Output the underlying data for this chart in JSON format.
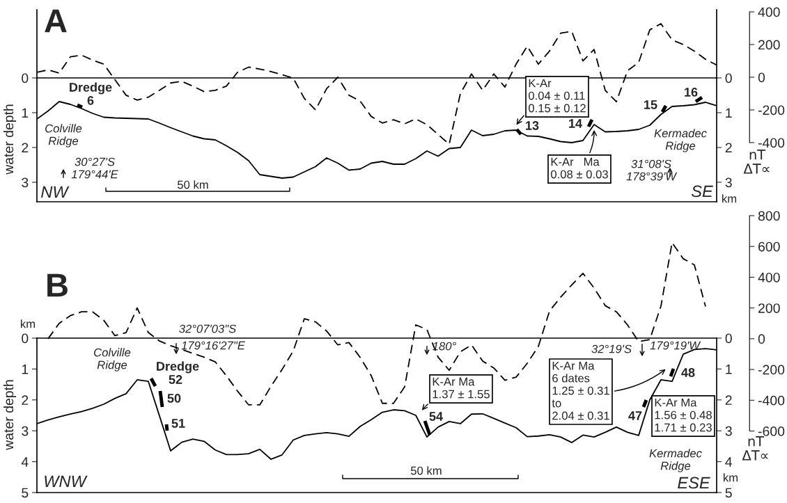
{
  "chart_data": [
    {
      "type": "line",
      "title": "A",
      "ylabel": "water depth",
      "y2label": "nT\nΔT∝",
      "tick_labels": "y",
      "categories": [
        null,
        null,
        null,
        null,
        null,
        null,
        null,
        null,
        null,
        null,
        null,
        null,
        null,
        null,
        null,
        null,
        null,
        null,
        null,
        null,
        null,
        null,
        null,
        null,
        null,
        null,
        null,
        null,
        null,
        null,
        null,
        null,
        null,
        null,
        null,
        null,
        null,
        null,
        null,
        null,
        null,
        null,
        null,
        null,
        null,
        null,
        null,
        null,
        null,
        null,
        null,
        null,
        null,
        null,
        null,
        null,
        null,
        null,
        null,
        null,
        null,
        null
      ],
      "series": [
        {
          "color": "#000000",
          "line_style": "solid",
          "values": [
            1.18,
            0.95,
            0.68,
            0.76,
            0.88,
            1.02,
            1.13,
            1.15,
            1.16,
            1.17,
            1.18,
            1.3,
            1.43,
            1.55,
            1.67,
            1.75,
            1.78,
            1.95,
            2.14,
            2.38,
            2.78,
            2.83,
            2.88,
            2.85,
            2.7,
            2.55,
            2.3,
            2.45,
            2.65,
            2.62,
            2.45,
            2.4,
            2.48,
            2.48,
            2.32,
            2.1,
            2.25,
            2.03,
            2.0,
            1.5,
            1.66,
            1.62,
            1.52,
            1.5,
            1.67,
            1.68,
            1.75,
            1.83,
            1.86,
            1.8,
            1.34,
            1.55,
            1.54,
            1.52,
            1.48,
            1.36,
            1.05,
            0.82,
            0.8,
            0.77,
            0.7,
            0.8
          ]
        },
        {
          "color": "#000000",
          "line_style": "dashed",
          "axis": "y2",
          "values": [
            30,
            45,
            25,
            125,
            135,
            105,
            80,
            -15,
            -110,
            -140,
            -122,
            -80,
            -35,
            -25,
            -55,
            -88,
            -80,
            -55,
            30,
            62,
            50,
            35,
            15,
            -5,
            -130,
            -200,
            -70,
            0,
            -110,
            -145,
            -240,
            -280,
            -260,
            -285,
            -255,
            -290,
            -350,
            -410,
            -100,
            20,
            -80,
            20,
            -60,
            80,
            190,
            80,
            160,
            270,
            280,
            100,
            170,
            -80,
            -150,
            40,
            90,
            290,
            328,
            228,
            200,
            160,
            110,
            75
          ]
        }
      ],
      "ylim": [
        3.56,
        -1.96
      ],
      "yticks": [
        0,
        1,
        2,
        3
      ],
      "y3lim": [
        3.56,
        -1.96
      ],
      "y3ticks": [
        0,
        1,
        2,
        3
      ],
      "y2lim": [
        -762,
        413
      ],
      "y2ticks": [
        -400,
        -200,
        0,
        200,
        400
      ],
      "ref_lines": [
        {
          "axis": "y",
          "value": 0,
          "color": "#000000"
        }
      ],
      "annotations": [
        "Dredge",
        "6",
        "Colville\nRidge",
        "30°27'S\n179°44'E",
        "NW",
        "50 km",
        "K-Ar\n0.04 ± 0.11\n0.15 ± 0.12",
        "13",
        "14",
        "K-Ar   Ma\n0.08 ± 0.03",
        "15",
        "16",
        "Kermadec\nRidge",
        "31°08'S\n178°39'W",
        "SE",
        "km"
      ]
    },
    {
      "type": "line",
      "title": "B",
      "ylabel": "water depth",
      "y2label": "nT\nΔT∝",
      "tick_labels": "y",
      "categories": [
        null,
        null,
        null,
        null,
        null,
        null,
        null,
        null,
        null,
        null,
        null,
        null,
        null,
        null,
        null,
        null,
        null,
        null,
        null,
        null,
        null,
        null,
        null,
        null,
        null,
        null,
        null,
        null,
        null,
        null,
        null,
        null,
        null,
        null,
        null,
        null,
        null,
        null,
        null,
        null,
        null,
        null,
        null,
        null,
        null,
        null,
        null,
        null,
        null,
        null,
        null,
        null,
        null,
        null,
        null,
        null,
        null,
        null,
        null,
        null,
        null,
        null
      ],
      "series": [
        {
          "color": "#000000",
          "line_style": "solid",
          "values": [
            2.77,
            2.65,
            2.55,
            2.46,
            2.38,
            2.27,
            2.14,
            1.95,
            1.8,
            1.35,
            1.4,
            2.52,
            3.65,
            3.37,
            3.27,
            3.34,
            3.62,
            3.77,
            3.77,
            3.74,
            3.6,
            3.92,
            3.78,
            3.3,
            3.15,
            3.1,
            3.06,
            3.1,
            3.18,
            2.86,
            2.64,
            2.4,
            2.32,
            2.35,
            2.5,
            3.2,
            2.88,
            2.7,
            2.77,
            2.46,
            2.45,
            2.6,
            2.75,
            2.9,
            3.19,
            3.17,
            3.13,
            3.2,
            3.38,
            3.14,
            3.2,
            3.05,
            2.88,
            3.05,
            3.15,
            2.0,
            1.35,
            1.4,
            0.52,
            0.37,
            0.34,
            0.38
          ]
        },
        {
          "color": "#000000",
          "line_style": "dashed",
          "axis": "y2",
          "values": [
            null,
            0,
            100,
            150,
            175,
            175,
            120,
            20,
            40,
            200,
            40,
            -15,
            -45,
            -70,
            -95,
            -120,
            -150,
            -240,
            -340,
            -430,
            -430,
            -310,
            -200,
            -80,
            130,
            110,
            50,
            -40,
            -25,
            -120,
            -240,
            -420,
            -420,
            -313,
            90,
            60,
            -120,
            -205,
            -85,
            -40,
            -145,
            -190,
            -270,
            -250,
            -160,
            -50,
            180,
            270,
            350,
            425,
            330,
            215,
            175,
            90,
            -18,
            -5,
            212,
            625,
            520,
            480,
            210,
            null
          ]
        }
      ],
      "ylim": [
        5,
        0
      ],
      "yticks": [
        0,
        1,
        2,
        3,
        4,
        5
      ],
      "y3lim": [
        5,
        0
      ],
      "y3ticks": [
        0,
        1,
        2,
        3,
        4,
        5
      ],
      "y2lim": [
        -1000,
        800
      ],
      "y2ticks": [
        -600,
        -400,
        -200,
        0,
        200,
        400,
        600,
        800
      ],
      "ref_lines": [
        {
          "axis": "y",
          "value": 0,
          "color": "#000000"
        }
      ],
      "annotations": [
        "km",
        "Colville\nRidge",
        "32°07'03\"S",
        "179°16'27\"E",
        "Dredge",
        "52",
        "50",
        "51",
        "WNW",
        "50 km",
        "180°",
        "K-Ar Ma\n1.37 ± 1.55",
        "54",
        "32°19'S",
        "179°19'W",
        "K-Ar Ma\n6 dates\n1.25 ± 0.31\nto\n2.04 ± 0.31",
        "48",
        "47",
        "K-Ar Ma\n1.56 ± 0.48\n1.71 ± 0.23",
        "Kermadec\nRidge",
        "ESE",
        "km"
      ]
    }
  ]
}
